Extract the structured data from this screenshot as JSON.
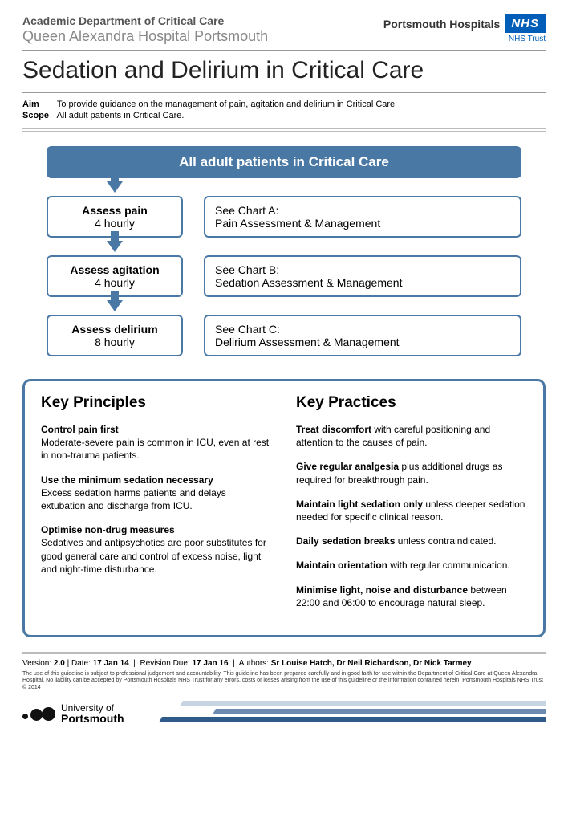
{
  "header": {
    "department": "Academic Department of Critical Care",
    "hospital": "Queen Alexandra Hospital Portsmouth",
    "trust": "Portsmouth Hospitals",
    "nhs": "NHS",
    "trust_sub": "NHS Trust"
  },
  "title": "Sedation and Delirium in Critical Care",
  "aim": {
    "label": "Aim",
    "text": "To provide guidance on the management of pain, agitation and delirium in Critical Care"
  },
  "scope": {
    "label": "Scope",
    "text": "All adult patients in Critical Care."
  },
  "flow": {
    "header": "All adult patients in Critical Care",
    "rows": [
      {
        "left_title": "Assess pain",
        "left_sub": "4 hourly",
        "right_title": "See Chart A:",
        "right_sub": "Pain Assessment & Management"
      },
      {
        "left_title": "Assess agitation",
        "left_sub": "4 hourly",
        "right_title": "See Chart B:",
        "right_sub": "Sedation Assessment & Management"
      },
      {
        "left_title": "Assess delirium",
        "left_sub": "8 hourly",
        "right_title": "See Chart C:",
        "right_sub": "Delirium Assessment & Management"
      }
    ]
  },
  "key": {
    "principles": {
      "heading": "Key Principles",
      "items": [
        {
          "bold": "Control pain first",
          "rest": "Moderate-severe pain is common in ICU, even at rest in non-trauma patients."
        },
        {
          "bold": "Use the minimum sedation necessary",
          "rest": "Excess sedation harms patients and delays extubation and discharge from ICU."
        },
        {
          "bold": "Optimise non-drug measures",
          "rest": "Sedatives and antipsychotics are poor substitutes for good general care and control of excess noise, light and night-time disturbance."
        }
      ]
    },
    "practices": {
      "heading": "Key Practices",
      "items": [
        {
          "bold": "Treat discomfort",
          "rest": " with careful positioning and attention to the causes of pain."
        },
        {
          "bold": "Give regular analgesia",
          "rest": " plus additional drugs as required for breakthrough pain."
        },
        {
          "bold": "Maintain light sedation only",
          "rest": " unless deeper sedation needed for specific clinical reason."
        },
        {
          "bold": "Daily sedation breaks",
          "rest": " unless contraindicated."
        },
        {
          "bold": "Maintain orientation",
          "rest": " with regular communication."
        },
        {
          "bold": "Minimise light, noise and disturbance",
          "rest": " between 22:00 and 06:00 to encourage natural sleep."
        }
      ]
    }
  },
  "footer": {
    "version_label": "Version:",
    "version": "2.0",
    "date_label": "Date:",
    "date": "17 Jan 14",
    "rev_label": "Revision Due:",
    "rev": "17 Jan 16",
    "auth_label": "Authors:",
    "auth": "Sr Louise Hatch, Dr Neil Richardson, Dr Nick Tarmey",
    "disclaimer": "The use of this guideline is subject to professional judgement and accountability. This guideline has been prepared carefully and in good faith for use within the Department of Critical Care at Queen Alexandra Hospital. No liability can be accepted by Portsmouth Hospitals NHS Trust for any errors, costs or losses arising from the use of this guideline or the information contained herein. Portsmouth Hospitals NHS Trust © 2014",
    "uop1": "University of",
    "uop2": "Portsmouth"
  },
  "colors": {
    "primary": "#4a78a4",
    "nhs_blue": "#005EB8"
  }
}
